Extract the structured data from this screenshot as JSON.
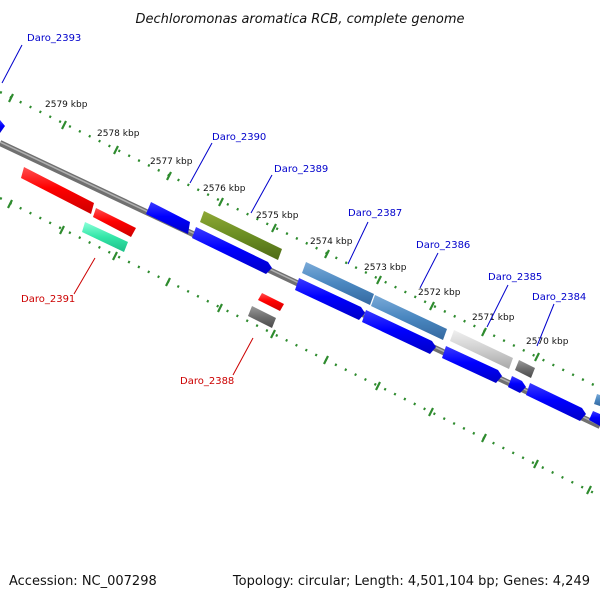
{
  "title": "Dechloromonas aromatica RCB, complete genome",
  "footer": {
    "accession": "Accession: NC_007298",
    "summary": "Topology: circular; Length: 4,501,104 bp; Genes: 4,249"
  },
  "colors": {
    "tick_green": "#2e8b2e",
    "backbone": "#808080",
    "label_blue": "#0000cc",
    "label_red": "#cc0000"
  },
  "ticks": [
    "2579 kbp",
    "2578 kbp",
    "2577 kbp",
    "2576 kbp",
    "2575 kbp",
    "2574 kbp",
    "2573 kbp",
    "2572 kbp",
    "2571 kbp",
    "2570 kbp"
  ],
  "gene_labels": {
    "daro_2393": "Daro_2393",
    "daro_2390": "Daro_2390",
    "daro_2389": "Daro_2389",
    "daro_2387": "Daro_2387",
    "daro_2386": "Daro_2386",
    "daro_2385": "Daro_2385",
    "daro_2384": "Daro_2384",
    "daro_2391": "Daro_2391",
    "daro_2388": "Daro_2388"
  }
}
